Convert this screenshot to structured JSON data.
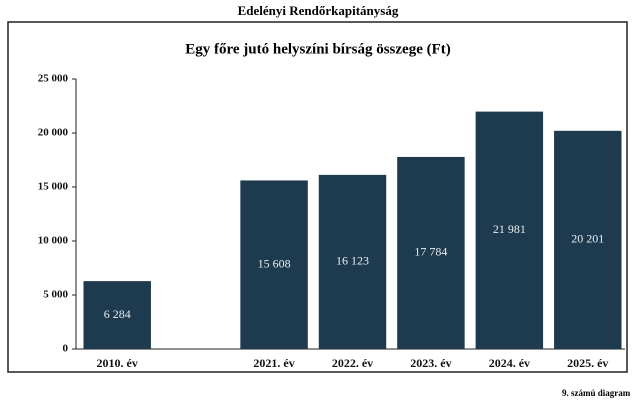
{
  "chart_data": {
    "type": "bar",
    "header": "Edelényi Rendőrkapitányság",
    "title": "Egy főre jutó helyszíni bírság összege (Ft)",
    "footer": "9. számú diagram",
    "categories": [
      "2010. év",
      null,
      "2021. év",
      "2022. év",
      "2023. év",
      "2024. év",
      "2025. év"
    ],
    "values": [
      6284,
      null,
      15608,
      16123,
      17784,
      21981,
      20201
    ],
    "value_labels": [
      "6 284",
      null,
      "15 608",
      "16 123",
      "17 784",
      "21 981",
      "20 201"
    ],
    "color": "#1e3a4e",
    "ylim": [
      0,
      25000
    ],
    "yticks": [
      0,
      {
        "value": 5000,
        "label": "5 000"
      },
      {
        "value": 10000,
        "label": "10 000"
      },
      {
        "value": 15000,
        "label": "15 000"
      },
      {
        "value": 20000,
        "label": "20 000"
      },
      {
        "value": 25000,
        "label": "25 000"
      }
    ],
    "grid": false
  }
}
